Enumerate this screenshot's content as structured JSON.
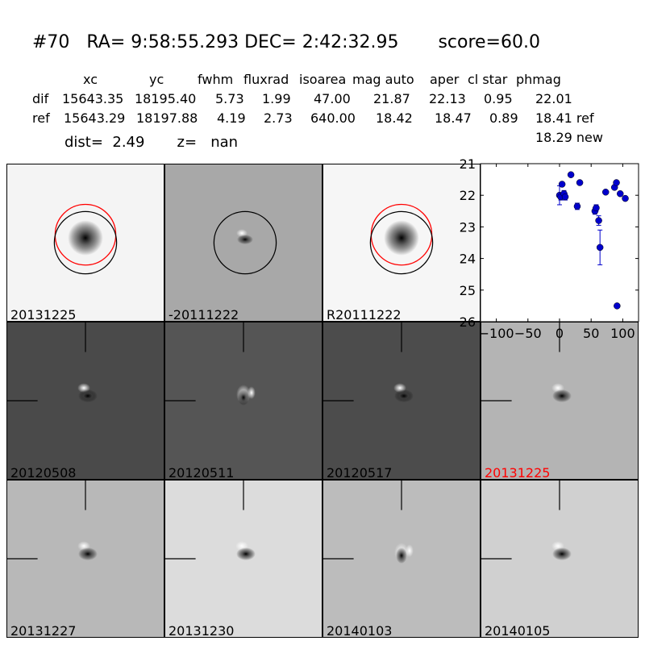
{
  "header": {
    "title": "#70   RA= 9:58:55.293 DEC= 2:42:32.95       score=60.0",
    "columns": [
      "xc",
      "yc",
      "fwhm",
      "fluxrad",
      "isoarea",
      "mag auto",
      "aper",
      "cl star",
      "phmag"
    ],
    "rows": [
      {
        "label": "dif",
        "values": [
          "15643.35",
          "18195.40",
          "5.73",
          "1.99",
          "47.00",
          "21.87",
          "22.13",
          "0.95",
          "22.01"
        ]
      },
      {
        "label": "ref",
        "values": [
          "15643.29",
          "18197.88",
          "4.19",
          "2.73",
          "640.00",
          "18.42",
          "18.47",
          "0.89",
          "18.41 ref"
        ]
      }
    ],
    "extra_phmag": "18.29 new",
    "dist_line": "dist=  2.49       z=   nan"
  },
  "panels": [
    {
      "label": "20131225",
      "label_color": "#000000",
      "bg": "#f4f4f4",
      "kind": "star-circles"
    },
    {
      "label": "-20111222",
      "label_color": "#000000",
      "bg": "#a8a8a8",
      "kind": "dipole-circle"
    },
    {
      "label": "R20111222",
      "label_color": "#000000",
      "bg": "#f6f6f6",
      "kind": "star-circles"
    },
    {
      "label": "20120508",
      "label_color": "#000000",
      "bg": "#4a4a4a",
      "kind": "dipole-cross"
    },
    {
      "label": "20120511",
      "label_color": "#000000",
      "bg": "#555555",
      "kind": "ring-cross"
    },
    {
      "label": "20120517",
      "label_color": "#000000",
      "bg": "#4c4c4c",
      "kind": "dipole-cross"
    },
    {
      "label": "20131225",
      "label_color": "#ff0000",
      "bg": "#b4b4b4",
      "kind": "dipole-cross"
    },
    {
      "label": "20131227",
      "label_color": "#000000",
      "bg": "#b8b8b8",
      "kind": "dipole-cross"
    },
    {
      "label": "20131230",
      "label_color": "#000000",
      "bg": "#dcdcdc",
      "kind": "dipole-cross"
    },
    {
      "label": "20140103",
      "label_color": "#000000",
      "bg": "#bcbcbc",
      "kind": "ring-cross"
    },
    {
      "label": "20140105",
      "label_color": "#000000",
      "bg": "#d0d0d0",
      "kind": "dipole-cross"
    }
  ],
  "chart_data": {
    "type": "scatter",
    "title": "",
    "xlabel": "",
    "ylabel": "",
    "xlim": [
      -125,
      125
    ],
    "ylim": [
      26,
      21
    ],
    "x_ticks": [
      -100,
      -50,
      0,
      50,
      100
    ],
    "x_tick_labels": [
      "−100",
      "−50",
      "0",
      "50",
      "100"
    ],
    "y_ticks": [
      21,
      22,
      23,
      24,
      25,
      26
    ],
    "y_tick_labels": [
      "21",
      "22",
      "23",
      "24",
      "25",
      "26"
    ],
    "marker_color": "#0000cc",
    "series": [
      {
        "points": [
          {
            "x": 0,
            "y": 22.0,
            "err": 0.3
          },
          {
            "x": 2,
            "y": 22.05,
            "err": 0.1
          },
          {
            "x": 4,
            "y": 21.65,
            "err": 0.05
          },
          {
            "x": 7,
            "y": 21.95,
            "err": 0.1
          },
          {
            "x": 9,
            "y": 22.05,
            "err": 0.1
          },
          {
            "x": 18,
            "y": 21.35,
            "err": 0.05
          },
          {
            "x": 28,
            "y": 22.35,
            "err": 0.1
          },
          {
            "x": 32,
            "y": 21.6,
            "err": 0.05
          },
          {
            "x": 56,
            "y": 22.5,
            "err": 0.1
          },
          {
            "x": 58,
            "y": 22.4,
            "err": 0.1
          },
          {
            "x": 62,
            "y": 22.8,
            "err": 0.15
          },
          {
            "x": 64,
            "y": 23.65,
            "err": 0.55
          },
          {
            "x": 73,
            "y": 21.9,
            "err": 0.05
          },
          {
            "x": 87,
            "y": 21.75,
            "err": 0.05
          },
          {
            "x": 90,
            "y": 21.6,
            "err": 0.05
          },
          {
            "x": 91,
            "y": 25.5,
            "err": 0.05
          },
          {
            "x": 96,
            "y": 21.95,
            "err": 0.05
          },
          {
            "x": 104,
            "y": 22.1,
            "err": 0.05
          }
        ]
      }
    ]
  }
}
